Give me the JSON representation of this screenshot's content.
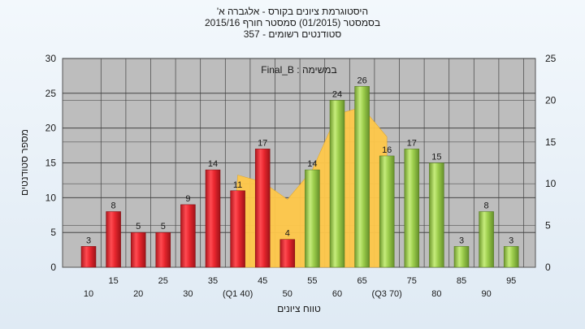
{
  "chart_data": {
    "type": "bar",
    "title_lines": [
      "היסטוגרמת ציונים בקורס - אלגברה א'",
      "בסמסטר  (01/2015)  סמסטר חורף  2015/16",
      "סטודנטים רשומים - 357"
    ],
    "annotation": "במשימה : Final_B",
    "categories": [
      "10",
      "15",
      "20",
      "25",
      "30",
      "35",
      "(Q1 40)",
      "45",
      "50",
      "55",
      "60",
      "65",
      "(Q3 70)",
      "75",
      "80",
      "85",
      "90",
      "95"
    ],
    "values": [
      3,
      8,
      5,
      5,
      9,
      14,
      11,
      17,
      4,
      14,
      24,
      26,
      16,
      17,
      15,
      3,
      8,
      3
    ],
    "bar_colors": [
      "red",
      "red",
      "red",
      "red",
      "red",
      "red",
      "red",
      "red",
      "red",
      "green",
      "green",
      "green",
      "green",
      "green",
      "green",
      "green",
      "green",
      "green"
    ],
    "xlabel": "טווח ציונים",
    "ylabel": "מספר סטודנטים",
    "ylim": [
      0,
      30
    ],
    "yticks": [
      0,
      5,
      10,
      15,
      20,
      25,
      30
    ],
    "y2lim": [
      0,
      25
    ],
    "y2ticks": [
      0,
      5,
      10,
      15,
      20,
      25
    ],
    "grid": true,
    "background_area_color": "#ffc84a",
    "colors": {
      "red": "#e8262e",
      "green": "#9ccd4c",
      "plot_bg": "#bdbdbd",
      "area": "#ffc84a"
    }
  }
}
